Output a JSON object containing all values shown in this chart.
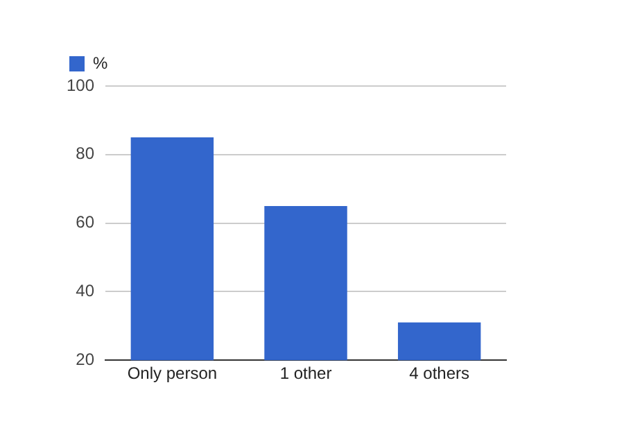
{
  "chart_data": {
    "type": "bar",
    "categories": [
      "Only person",
      "1 other",
      "4 others"
    ],
    "series": [
      {
        "name": "%",
        "color": "#3366cc",
        "values": [
          85,
          65,
          31
        ]
      }
    ],
    "ylim": [
      20,
      100
    ],
    "yticks": [
      20,
      40,
      60,
      80,
      100
    ],
    "grid": "y",
    "legend": "top left"
  }
}
